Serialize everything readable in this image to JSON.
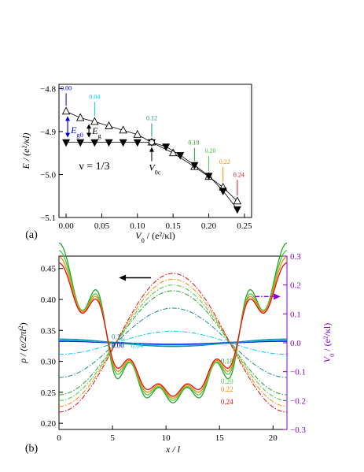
{
  "colors": {
    "open_triangles": "#000000",
    "filled_triangles": "#000000",
    "v000": "#0000cc",
    "v004": "#00c8ff",
    "v012": "#1a8c8c",
    "v018": "#2aa02a",
    "v020": "#44cc44",
    "v022": "#ff8800",
    "v024": "#dd1111",
    "purple": "#8800cc",
    "gap_ground": "#0000cc",
    "gap": "#000000"
  },
  "chart_data": [
    {
      "type": "scatter",
      "panel_label": "(a)",
      "xlabel": {
        "pre": "V",
        "sub": "0",
        "post": " / (e²/κl)"
      },
      "ylabel": {
        "pre": "E / (e²/κl)"
      },
      "xlim": [
        -0.01,
        0.26
      ],
      "ylim": [
        -5.1,
        -4.79
      ],
      "xticks": [
        "0.00",
        "0.05",
        "0.10",
        "0.15",
        "0.20",
        "0.25"
      ],
      "xtick_values": [
        0.0,
        0.05,
        0.1,
        0.15,
        0.2,
        0.25
      ],
      "yticks": [
        "-5.1",
        "-5.0",
        "-4.9",
        "-4.8"
      ],
      "ytick_values": [
        -5.1,
        -5.0,
        -4.9,
        -4.8
      ],
      "filling_label": "ν = 1/3",
      "series": [
        {
          "marker": "open-triangle-up",
          "x": [
            0.0,
            0.02,
            0.04,
            0.06,
            0.08,
            0.1,
            0.12,
            0.15,
            0.18,
            0.2,
            0.22,
            0.24
          ],
          "y": [
            -4.853,
            -4.868,
            -4.877,
            -4.887,
            -4.897,
            -4.907,
            -4.925,
            -4.95,
            -4.982,
            -5.005,
            -5.03,
            -5.062
          ]
        },
        {
          "marker": "filled-triangle-down",
          "x": [
            0.0,
            0.02,
            0.04,
            0.06,
            0.08,
            0.1,
            0.12,
            0.14,
            0.16,
            0.18,
            0.2,
            0.22,
            0.24
          ],
          "y": [
            -4.925,
            -4.925,
            -4.925,
            -4.925,
            -4.925,
            -4.925,
            -4.925,
            -4.935,
            -4.955,
            -4.978,
            -5.003,
            -5.038,
            -5.081
          ]
        }
      ],
      "annotations": [
        {
          "text": "0.00",
          "x": 0.0,
          "y": -4.853,
          "color_key": "v000"
        },
        {
          "text": "0.04",
          "x": 0.04,
          "y": -4.877,
          "color_key": "v004"
        },
        {
          "text": "0.12",
          "x": 0.12,
          "y": -4.925,
          "color_key": "v012"
        },
        {
          "text": "0.18",
          "x": 0.18,
          "y": -4.982,
          "color_key": "v018"
        },
        {
          "text": "0.20",
          "x": 0.2,
          "y": -5.005,
          "color_key": "v020"
        },
        {
          "text": "0.22",
          "x": 0.22,
          "y": -5.03,
          "color_key": "v022"
        },
        {
          "text": "0.24",
          "x": 0.24,
          "y": -5.062,
          "color_key": "v024"
        }
      ],
      "gap_labels": {
        "Eg0": {
          "pre": "E",
          "sub": "g0"
        },
        "Eg": {
          "pre": "E",
          "sub": "g"
        },
        "V0c": {
          "pre": "V",
          "sub": "0c"
        }
      }
    },
    {
      "type": "line",
      "panel_label": "(b)",
      "xlabel": "x / l",
      "ylabel_left": {
        "pre": "ρ / (e/2πl",
        "sup": "2",
        "post": ")"
      },
      "ylabel_right": {
        "pre": "V",
        "sub": "0",
        "post": " / (e²/κl)"
      },
      "xlim": [
        0,
        21.3
      ],
      "ylim_left": [
        0.19,
        0.47
      ],
      "ylim_right": [
        -0.3,
        0.3
      ],
      "xticks": [
        "0",
        "5",
        "10",
        "15",
        "20"
      ],
      "xtick_values": [
        0,
        5,
        10,
        15,
        20
      ],
      "yticks_left": [
        "0.20",
        "0.25",
        "0.30",
        "0.35",
        "0.40",
        "0.45"
      ],
      "ytick_values_left": [
        0.2,
        0.25,
        0.3,
        0.35,
        0.4,
        0.45
      ],
      "yticks_right": [
        "-0.3",
        "-0.2",
        "-0.1",
        "0.0",
        "0.1",
        "0.2",
        "0.3"
      ],
      "ytick_values_right": [
        -0.3,
        -0.2,
        -0.1,
        0.0,
        0.1,
        0.2,
        0.3
      ],
      "density_series": [
        {
          "label": "0.00",
          "color_key": "v000",
          "base": 0.33,
          "a1": 0.003,
          "a2": 0.0,
          "a3": 0.0,
          "hf": 0.0
        },
        {
          "label": "0.04",
          "color_key": "v004",
          "base": 0.33,
          "a1": 0.004,
          "a2": 0.0,
          "a3": 0.0,
          "hf": 0.0
        },
        {
          "label": "0.12",
          "color_key": "v012",
          "base": 0.33,
          "a1": 0.006,
          "a2": 0.0,
          "a3": 0.0,
          "hf": 0.0
        },
        {
          "label": "0.18",
          "color_key": "v018",
          "base": 0.33,
          "a1": 0.005,
          "a2": 0.1,
          "a3": 0.04,
          "hf": 0.015
        },
        {
          "label": "0.20",
          "color_key": "v020",
          "base": 0.33,
          "a1": 0.005,
          "a2": 0.095,
          "a3": 0.035,
          "hf": 0.013
        },
        {
          "label": "0.22",
          "color_key": "v022",
          "base": 0.33,
          "a1": 0.005,
          "a2": 0.09,
          "a3": 0.03,
          "hf": 0.012
        },
        {
          "label": "0.24",
          "color_key": "v024",
          "base": 0.33,
          "a1": 0.005,
          "a2": 0.085,
          "a3": 0.025,
          "hf": 0.011
        }
      ],
      "potential_series": [
        {
          "V0": 0.04,
          "color_key": "v004"
        },
        {
          "V0": 0.12,
          "color_key": "v012"
        },
        {
          "V0": 0.18,
          "color_key": "v018"
        },
        {
          "V0": 0.2,
          "color_key": "v020"
        },
        {
          "V0": 0.22,
          "color_key": "v022"
        },
        {
          "V0": 0.24,
          "color_key": "v024"
        }
      ],
      "labels": [
        {
          "text": "0.12",
          "x": 5.5,
          "y": 0.336,
          "color_key": "v012"
        },
        {
          "text": "0.00",
          "x": 5.5,
          "y": 0.322,
          "color_key": "v000"
        },
        {
          "text": "0.04",
          "x": 7.3,
          "y": 0.322,
          "color_key": "v004"
        },
        {
          "text": "0.18",
          "x": 15.7,
          "y": 0.296,
          "color_key": "v018"
        },
        {
          "text": "0.20",
          "x": 15.7,
          "y": 0.264,
          "color_key": "v020"
        },
        {
          "text": "0.22",
          "x": 15.7,
          "y": 0.251,
          "color_key": "v022"
        },
        {
          "text": "0.24",
          "x": 15.7,
          "y": 0.231,
          "color_key": "v024"
        }
      ]
    }
  ]
}
